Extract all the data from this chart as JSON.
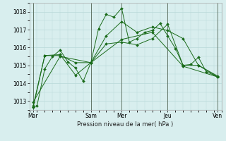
{
  "background_color": "#d8eeee",
  "grid_color": "#b8d8d8",
  "line_color": "#1a6b1a",
  "marker_color": "#1a6b1a",
  "xlabel": "Pression niveau de la mer( hPa )",
  "ylim": [
    1012.5,
    1018.5
  ],
  "yticks": [
    1013,
    1014,
    1015,
    1016,
    1017,
    1018
  ],
  "xlim": [
    0,
    25
  ],
  "day_labels": [
    "Mar",
    "",
    "Sam",
    "Mer",
    "",
    "Jeu",
    "",
    "Ven"
  ],
  "day_positions": [
    0.5,
    4,
    8,
    12,
    15,
    18,
    21,
    24.5
  ],
  "vline_positions": [
    0.5,
    8,
    12,
    18,
    24.5
  ],
  "lines": [
    {
      "x": [
        0.5,
        1,
        2,
        3,
        4,
        5,
        6,
        7,
        8,
        9,
        10,
        11,
        12,
        13,
        14,
        15,
        16,
        17,
        18,
        19,
        20,
        21,
        22,
        23,
        24.5
      ],
      "y": [
        1012.65,
        1012.75,
        1014.8,
        1015.5,
        1015.85,
        1015.2,
        1014.85,
        1014.1,
        1015.15,
        1017.05,
        1017.85,
        1017.7,
        1018.2,
        1016.3,
        1016.5,
        1016.85,
        1016.95,
        1017.35,
        1016.65,
        1015.95,
        1015.0,
        1015.05,
        1015.45,
        1014.65,
        1014.35
      ]
    },
    {
      "x": [
        0.5,
        2,
        4,
        6,
        8,
        10,
        12,
        14,
        16,
        18,
        20,
        22,
        24.5
      ],
      "y": [
        1012.65,
        1015.55,
        1015.55,
        1015.15,
        1015.15,
        1016.2,
        1016.3,
        1016.15,
        1016.5,
        1017.3,
        1015.0,
        1015.0,
        1014.35
      ]
    },
    {
      "x": [
        0.5,
        2,
        4,
        6,
        8,
        10,
        12,
        14,
        16,
        18,
        20,
        22,
        24.5
      ],
      "y": [
        1012.75,
        1015.55,
        1015.6,
        1014.45,
        1015.15,
        1016.65,
        1017.45,
        1016.85,
        1017.15,
        1016.95,
        1016.5,
        1015.0,
        1014.4
      ]
    },
    {
      "x": [
        0.5,
        4,
        8,
        12,
        16,
        20,
        24.5
      ],
      "y": [
        1012.95,
        1015.5,
        1015.15,
        1016.45,
        1016.85,
        1014.95,
        1014.35
      ]
    }
  ]
}
